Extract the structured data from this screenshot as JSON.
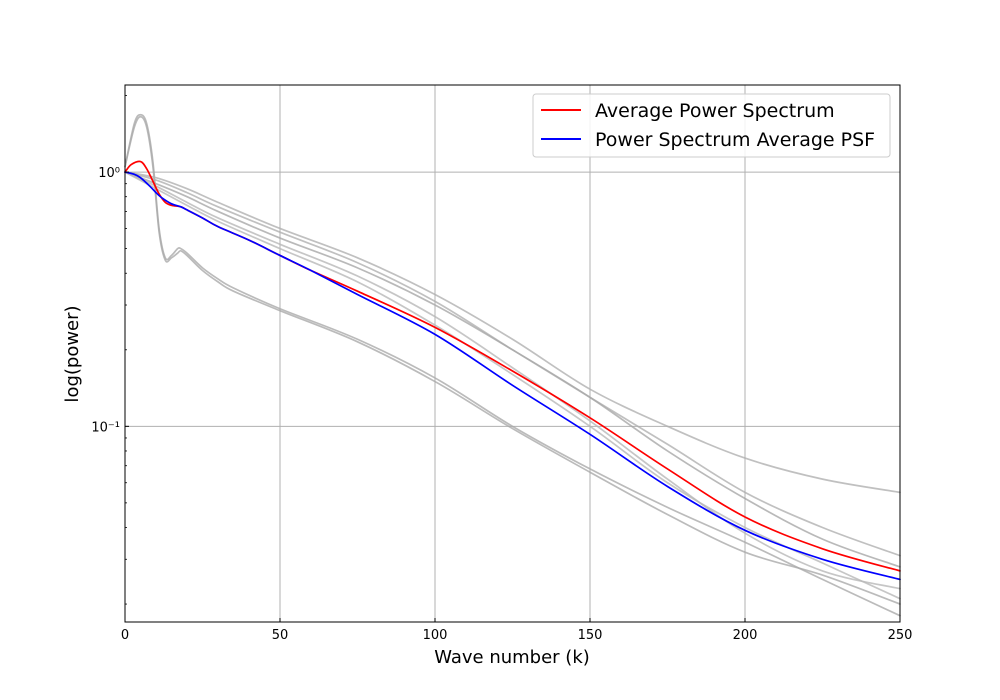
{
  "chart_data": {
    "type": "line",
    "xlabel": "Wave number (k)",
    "ylabel": "log(power)",
    "xlim": [
      0,
      250
    ],
    "ylim": [
      0.017,
      2.2
    ],
    "yscale": "log",
    "grid": true,
    "legend_position": "top-right",
    "x_ticks": [
      {
        "value": 0,
        "label": "0"
      },
      {
        "value": 50,
        "label": "50"
      },
      {
        "value": 100,
        "label": "100"
      },
      {
        "value": 150,
        "label": "150"
      },
      {
        "value": 200,
        "label": "200"
      },
      {
        "value": 250,
        "label": "250"
      }
    ],
    "y_ticks": [
      {
        "value": 1,
        "label": "10⁰"
      },
      {
        "value": 0.1,
        "label": "10⁻¹"
      }
    ],
    "series": [
      {
        "name": "",
        "legend": false,
        "color": "#aaaaaa",
        "x": [
          0,
          3,
          5,
          7,
          9,
          11,
          13,
          15,
          17,
          18,
          20,
          25,
          30,
          35,
          50,
          75,
          100,
          125,
          150,
          175,
          200,
          225,
          250
        ],
        "y": [
          1.05,
          1.55,
          1.68,
          1.55,
          1.1,
          0.6,
          0.46,
          0.47,
          0.5,
          0.5,
          0.48,
          0.42,
          0.38,
          0.35,
          0.29,
          0.22,
          0.155,
          0.1,
          0.068,
          0.048,
          0.035,
          0.025,
          0.018
        ]
      },
      {
        "name": "",
        "legend": false,
        "color": "#aaaaaa",
        "x": [
          0,
          3,
          5,
          7,
          9,
          11,
          13,
          15,
          17,
          18,
          20,
          25,
          30,
          35,
          50,
          75,
          100,
          125,
          150,
          175,
          200,
          225,
          250
        ],
        "y": [
          1.05,
          1.5,
          1.65,
          1.5,
          1.05,
          0.58,
          0.45,
          0.46,
          0.48,
          0.49,
          0.47,
          0.41,
          0.37,
          0.34,
          0.285,
          0.215,
          0.15,
          0.098,
          0.066,
          0.045,
          0.032,
          0.026,
          0.02
        ]
      },
      {
        "name": "",
        "legend": false,
        "color": "#b0b0b0",
        "x": [
          0,
          10,
          20,
          30,
          50,
          75,
          100,
          125,
          150,
          175,
          200,
          225,
          250
        ],
        "y": [
          1.0,
          0.95,
          0.86,
          0.76,
          0.6,
          0.46,
          0.33,
          0.22,
          0.14,
          0.1,
          0.075,
          0.062,
          0.055
        ]
      },
      {
        "name": "",
        "legend": false,
        "color": "#b0b0b0",
        "x": [
          0,
          10,
          20,
          30,
          50,
          75,
          100,
          125,
          150,
          175,
          200,
          225,
          250
        ],
        "y": [
          1.0,
          0.93,
          0.83,
          0.73,
          0.58,
          0.44,
          0.31,
          0.2,
          0.13,
          0.085,
          0.055,
          0.04,
          0.031
        ]
      },
      {
        "name": "",
        "legend": false,
        "color": "#a8a8a8",
        "x": [
          0,
          10,
          20,
          30,
          50,
          75,
          100,
          125,
          150,
          175,
          200,
          225,
          250
        ],
        "y": [
          1.0,
          0.9,
          0.8,
          0.7,
          0.55,
          0.42,
          0.3,
          0.2,
          0.13,
          0.08,
          0.052,
          0.036,
          0.028
        ]
      },
      {
        "name": "",
        "legend": false,
        "color": "#b8b8b8",
        "x": [
          0,
          10,
          20,
          30,
          50,
          75,
          100,
          125,
          150,
          175,
          200,
          225,
          250
        ],
        "y": [
          1.0,
          0.88,
          0.76,
          0.66,
          0.52,
          0.39,
          0.27,
          0.17,
          0.105,
          0.062,
          0.038,
          0.027,
          0.023
        ]
      },
      {
        "name": "",
        "legend": false,
        "color": "#b8b8b8",
        "x": [
          0,
          10,
          20,
          30,
          50,
          75,
          100,
          125,
          150,
          175,
          200,
          225,
          250
        ],
        "y": [
          1.0,
          0.86,
          0.74,
          0.64,
          0.5,
          0.37,
          0.25,
          0.16,
          0.1,
          0.06,
          0.04,
          0.029,
          0.021
        ]
      },
      {
        "name": "Average Power Spectrum",
        "legend": true,
        "color": "#ff0000",
        "x": [
          0,
          2,
          5,
          7,
          9,
          11,
          13,
          15,
          18,
          20,
          25,
          30,
          40,
          50,
          60,
          75,
          100,
          125,
          150,
          175,
          200,
          225,
          250
        ],
        "y": [
          1.0,
          1.07,
          1.1,
          1.03,
          0.92,
          0.82,
          0.76,
          0.74,
          0.73,
          0.71,
          0.66,
          0.61,
          0.54,
          0.47,
          0.41,
          0.34,
          0.245,
          0.165,
          0.108,
          0.068,
          0.044,
          0.033,
          0.027
        ]
      },
      {
        "name": "Power Spectrum Average PSF",
        "legend": true,
        "color": "#0000ff",
        "x": [
          0,
          3,
          5,
          8,
          10,
          12,
          15,
          18,
          20,
          25,
          30,
          40,
          50,
          60,
          75,
          100,
          125,
          150,
          175,
          200,
          225,
          250
        ],
        "y": [
          1.0,
          0.98,
          0.95,
          0.88,
          0.83,
          0.79,
          0.75,
          0.73,
          0.71,
          0.66,
          0.61,
          0.54,
          0.47,
          0.41,
          0.33,
          0.23,
          0.145,
          0.093,
          0.058,
          0.039,
          0.03,
          0.025
        ]
      }
    ]
  }
}
